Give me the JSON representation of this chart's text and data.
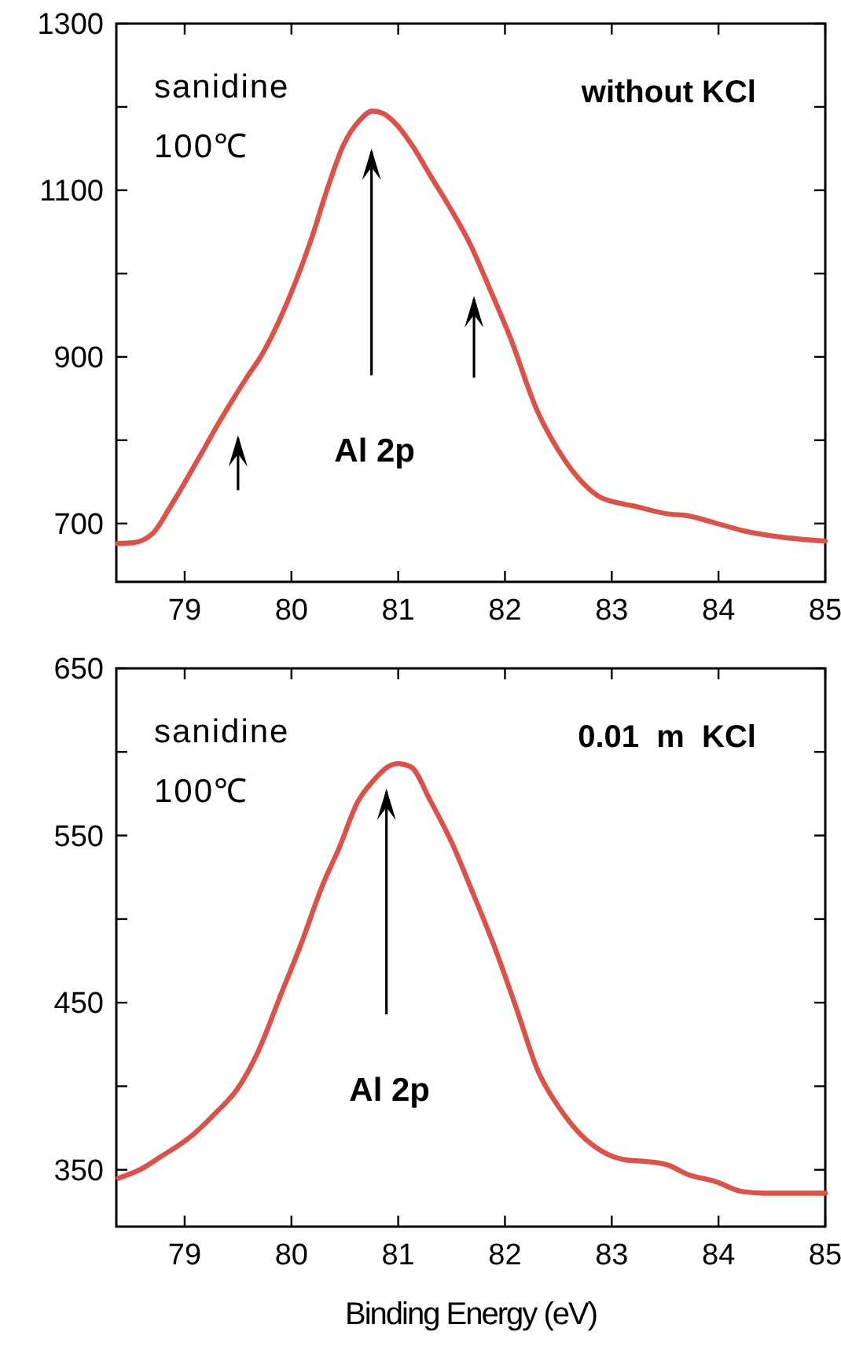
{
  "chart_data": [
    {
      "type": "line",
      "annotations": [
        "sanidine",
        "100℃",
        "without KCl",
        "Al 2p"
      ],
      "xlim": [
        78.36,
        85
      ],
      "xticks": [
        79,
        80,
        81,
        82,
        83,
        84,
        85
      ],
      "ylim": [
        630,
        1300
      ],
      "yticks": [
        700,
        {
          "value": 800,
          "label": null
        },
        900,
        {
          "value": 1000,
          "label": null
        },
        1100,
        {
          "value": 1200,
          "label": null
        },
        1300
      ],
      "series": [
        {
          "color": "#d9534a",
          "x": [
            78.37,
            78.52,
            78.7,
            78.87,
            79.13,
            79.33,
            79.58,
            79.73,
            79.88,
            80.03,
            80.18,
            80.34,
            80.49,
            80.64,
            80.76,
            80.86,
            80.99,
            81.14,
            81.29,
            81.49,
            81.66,
            81.87,
            82.05,
            82.3,
            82.5,
            82.75,
            82.9,
            83.21,
            83.56,
            83.68,
            83.96,
            84.21,
            84.57,
            85.0
          ],
          "values": [
            676,
            677,
            688,
            721,
            778,
            823,
            875,
            904,
            942,
            987,
            1039,
            1103,
            1155,
            1184,
            1195,
            1192,
            1178,
            1152,
            1120,
            1078,
            1039,
            978,
            923,
            836,
            788,
            746,
            731,
            721,
            711,
            710,
            701,
            692,
            684,
            679
          ]
        }
      ]
    },
    {
      "type": "line",
      "annotations": [
        "sanidine",
        "100℃",
        "0.01  m  KCl",
        "Al 2p"
      ],
      "xlabel": "Binding Energy (eV)",
      "xlim": [
        78.36,
        85
      ],
      "xticks": [
        79,
        80,
        81,
        82,
        83,
        84,
        85
      ],
      "ylim": [
        316,
        650
      ],
      "yticks": [
        350,
        {
          "value": 400,
          "label": null
        },
        450,
        {
          "value": 500,
          "label": null
        },
        550,
        {
          "value": 600,
          "label": null
        },
        650
      ],
      "series": [
        {
          "color": "#d9534a",
          "x": [
            78.38,
            78.58,
            78.78,
            79.04,
            79.29,
            79.49,
            79.69,
            79.89,
            80.09,
            80.29,
            80.45,
            80.62,
            80.77,
            80.9,
            81.0,
            81.12,
            81.3,
            81.5,
            81.71,
            81.91,
            82.11,
            82.31,
            82.51,
            82.71,
            82.91,
            83.12,
            83.32,
            83.52,
            83.72,
            83.97,
            84.22,
            84.43,
            85.0
          ],
          "values": [
            345,
            350,
            358,
            369,
            384,
            398,
            421,
            453,
            485,
            520,
            543,
            570,
            583,
            591,
            593,
            591,
            571,
            546,
            514,
            482,
            446,
            409,
            387,
            371,
            361,
            356,
            355,
            353,
            347,
            343,
            337,
            336,
            336
          ]
        }
      ]
    }
  ]
}
